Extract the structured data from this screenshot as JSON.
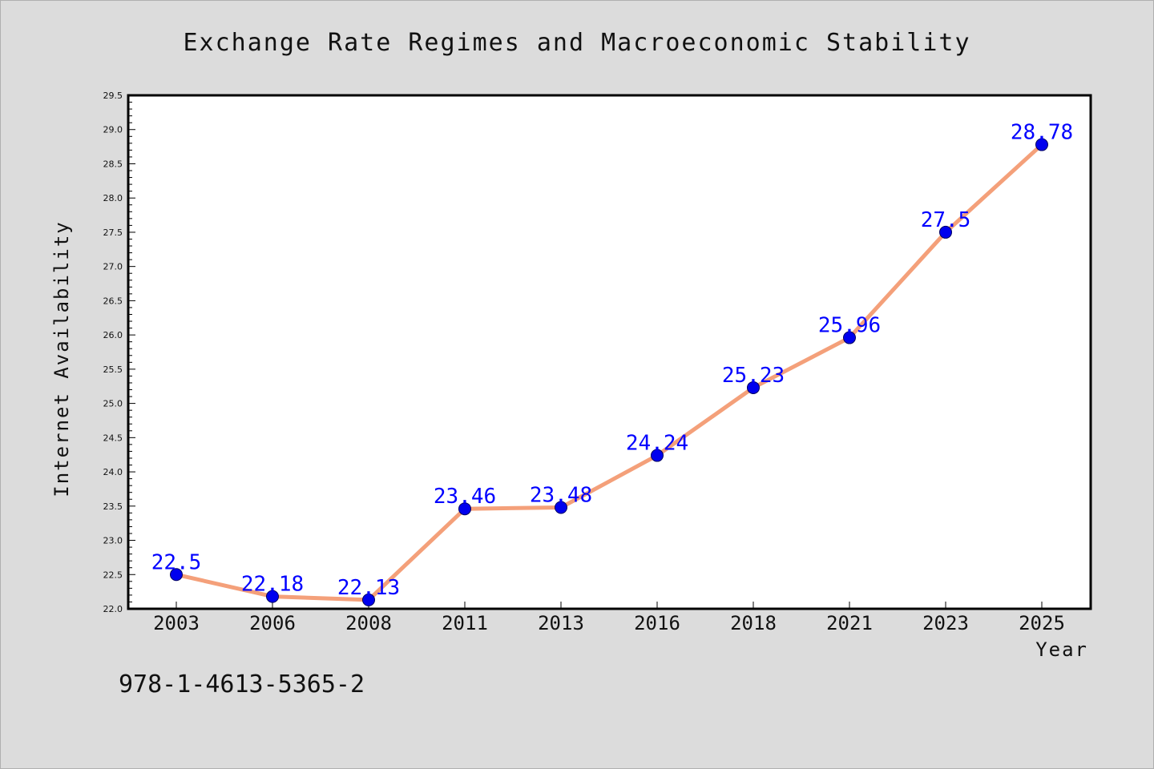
{
  "chart_data": {
    "type": "line",
    "title": "Exchange Rate Regimes and Macroeconomic Stability",
    "xlabel": "Year",
    "ylabel": "Internet Availability",
    "categories": [
      "2003",
      "2006",
      "2008",
      "2011",
      "2013",
      "2016",
      "2018",
      "2021",
      "2023",
      "2025"
    ],
    "values": [
      22.5,
      22.18,
      22.13,
      23.46,
      23.48,
      24.24,
      25.23,
      25.96,
      27.5,
      28.78
    ],
    "data_labels": [
      "22.5",
      "22.18",
      "22.13",
      "23.46",
      "23.48",
      "24.24",
      "25.23",
      "25.96",
      "27.5",
      "28.78"
    ],
    "ylim": [
      22.0,
      29.5
    ],
    "yticks": [
      "22.0",
      "22.5",
      "23.0",
      "23.5",
      "24.0",
      "24.5",
      "25.0",
      "25.5",
      "26.0",
      "26.5",
      "27.0",
      "27.5",
      "28.0",
      "28.5",
      "29.0",
      "29.5"
    ],
    "grid": false,
    "line_color": "#f4a07a",
    "marker_color": "#0000ee",
    "label_color": "#0000ff"
  },
  "footnote": "978-1-4613-5365-2"
}
